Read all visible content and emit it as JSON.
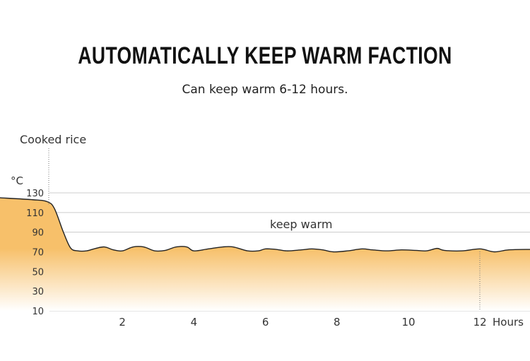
{
  "title": "AUTOMATICALLY KEEP WARM FACTION",
  "subtitle": "Can keep warm 6-12 hours.",
  "chart_data": {
    "type": "area",
    "ylabel": "°C",
    "xlabel": "Hours",
    "ylim": [
      10,
      130
    ],
    "xlim": [
      -1.4,
      13.4
    ],
    "yticks": [
      130,
      110,
      90,
      70,
      50,
      30,
      10
    ],
    "xticks": [
      2,
      4,
      6,
      8,
      10,
      12
    ],
    "grid": true,
    "annotations": {
      "start": "Cooked rice",
      "phase": "keep warm"
    },
    "x": [
      -1.43,
      -0.5,
      -0.1,
      0.1,
      0.35,
      0.55,
      0.75,
      1.0,
      1.25,
      1.5,
      1.75,
      2.0,
      2.3,
      2.6,
      2.9,
      3.2,
      3.5,
      3.8,
      4.0,
      4.4,
      4.8,
      5.1,
      5.5,
      5.8,
      6.0,
      6.3,
      6.6,
      7.0,
      7.3,
      7.6,
      7.9,
      8.3,
      8.7,
      9.0,
      9.4,
      9.8,
      10.2,
      10.5,
      10.8,
      11.0,
      11.5,
      12.0,
      12.4,
      12.8,
      13.4
    ],
    "y": [
      125,
      123,
      121,
      114,
      90,
      74,
      71,
      71,
      73.5,
      75,
      72,
      71,
      75,
      75,
      71,
      71.5,
      75,
      75,
      71,
      73,
      75,
      75,
      71,
      71,
      73,
      72.5,
      71,
      72,
      73,
      72,
      70,
      71,
      73,
      72,
      71,
      72,
      71.5,
      71,
      73.5,
      71.5,
      71,
      73,
      70,
      72,
      72.5
    ],
    "colors": {
      "fill_top": "#f7c06a",
      "fill_bottom": "#ffffff",
      "line": "#222222",
      "grid": "#cccccc"
    }
  }
}
